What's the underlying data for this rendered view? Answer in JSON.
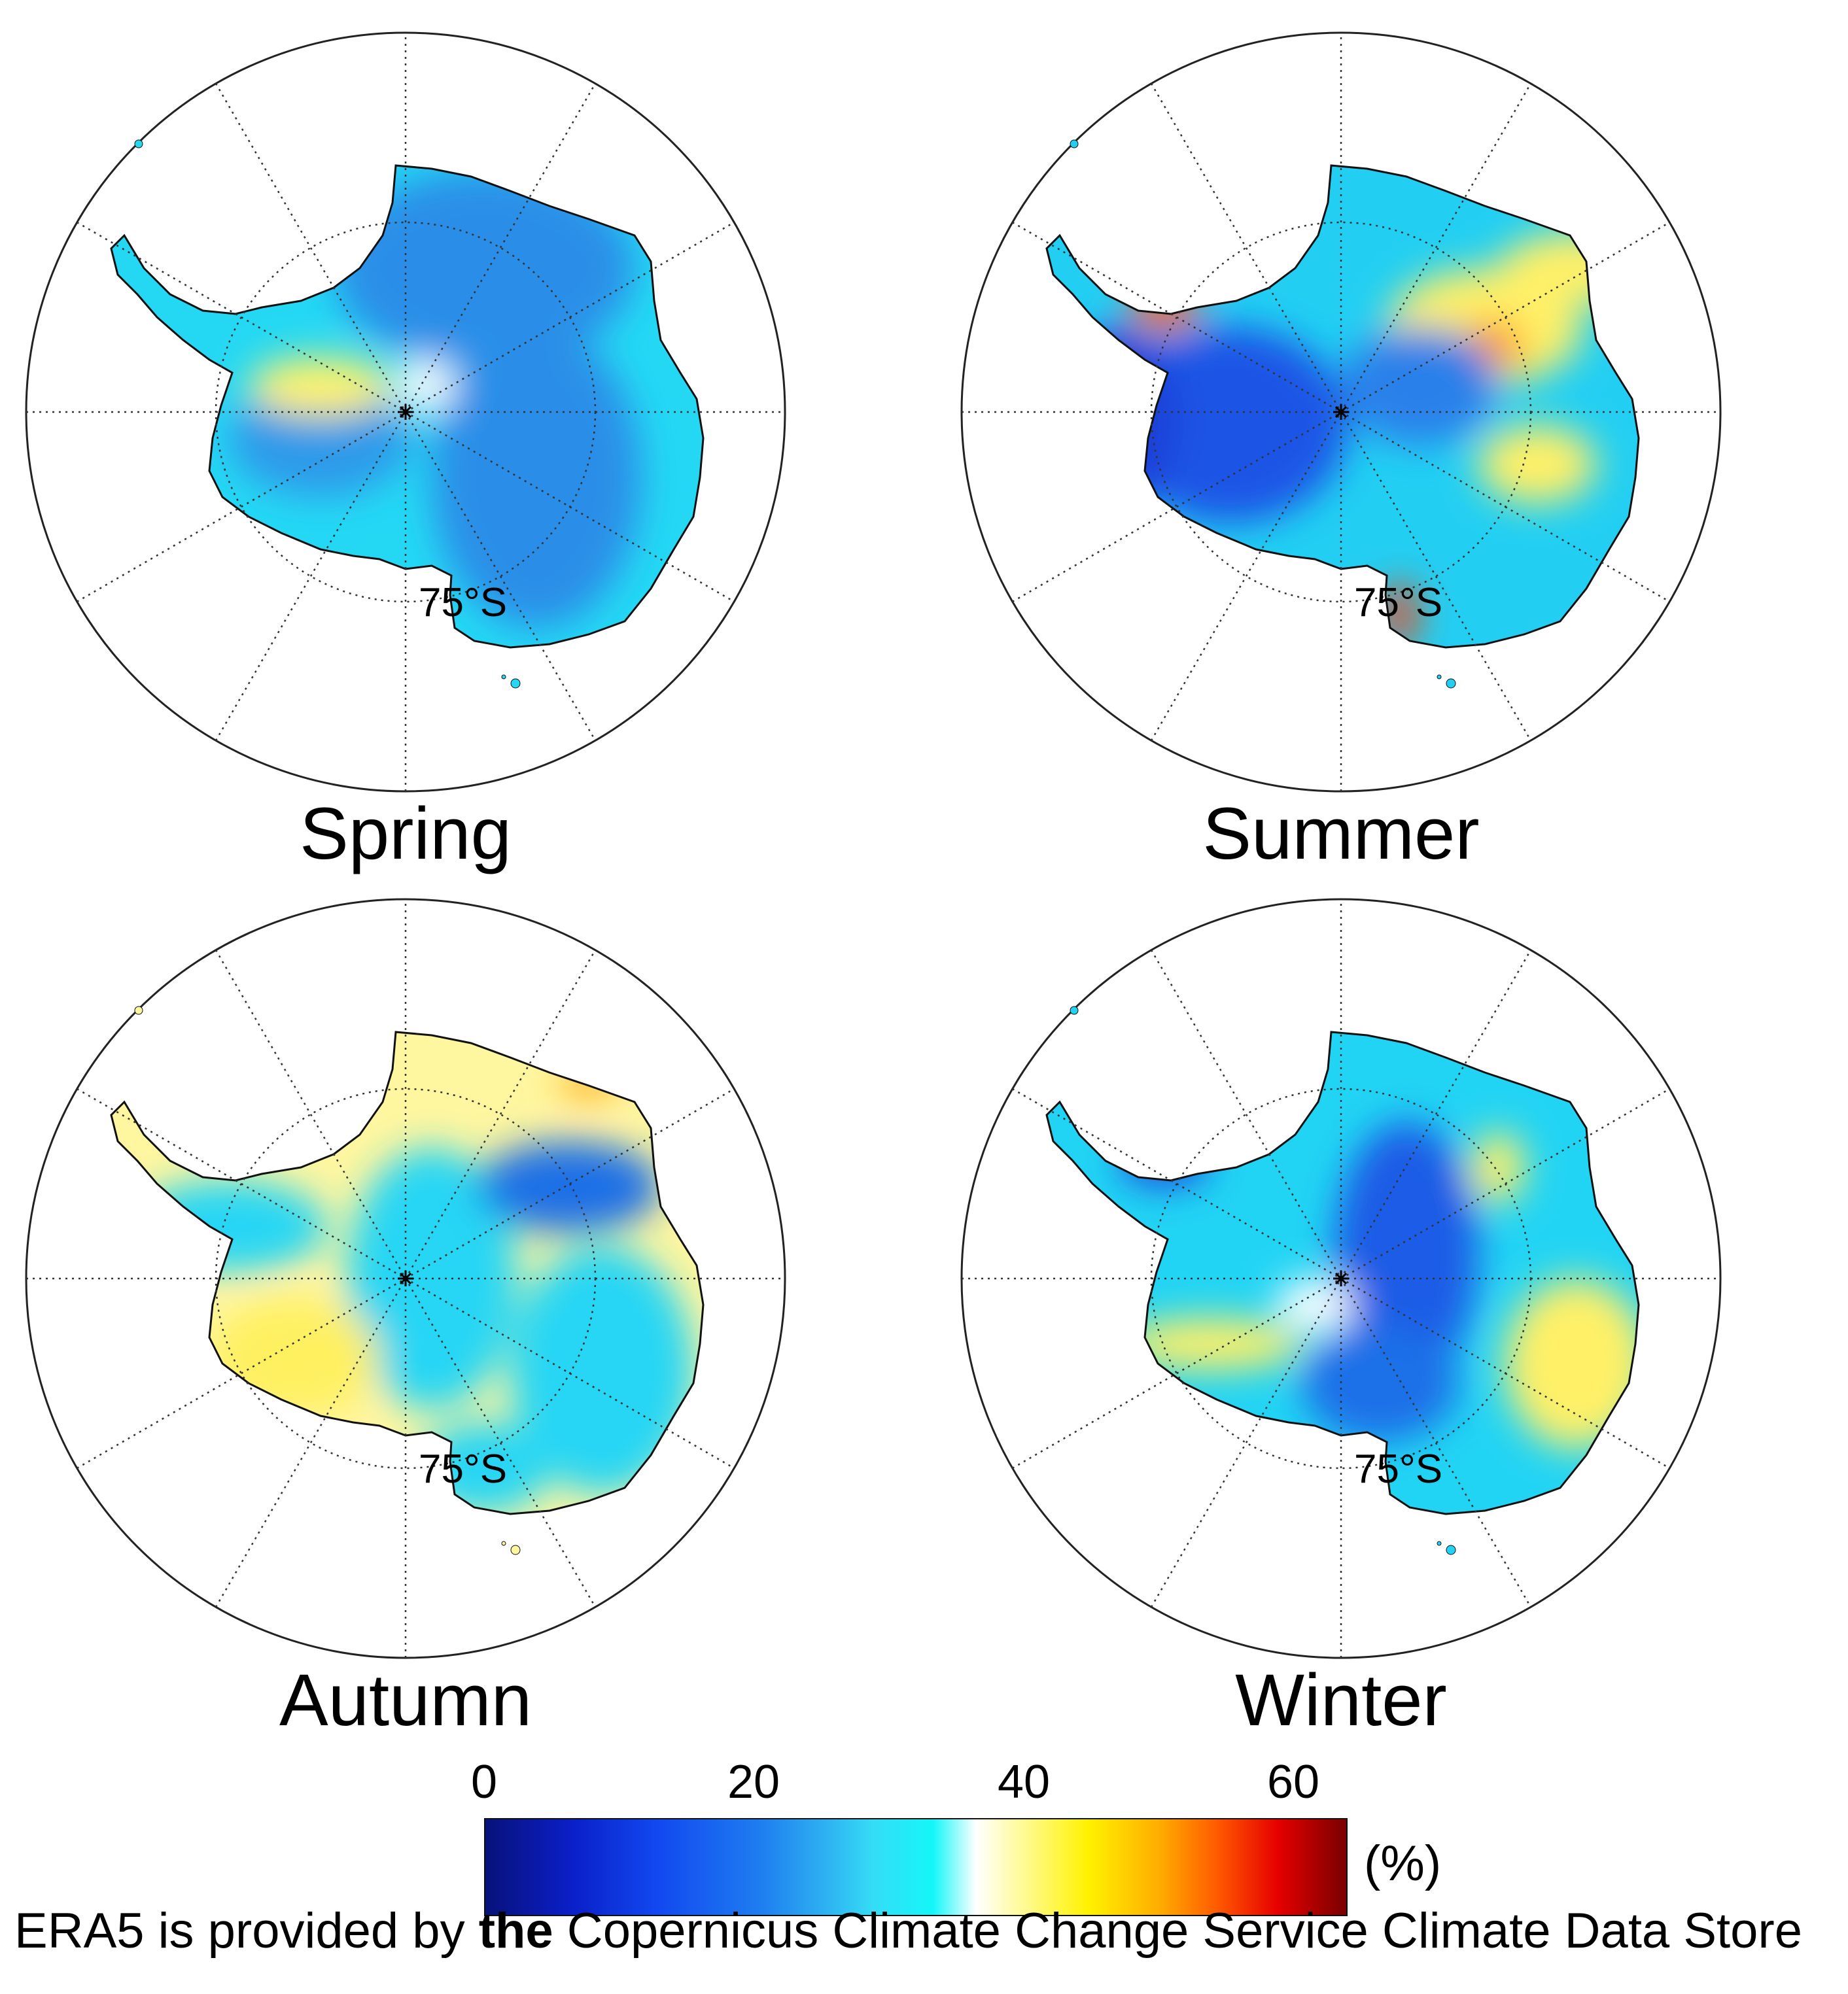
{
  "panels": [
    {
      "season": "Spring",
      "latitude_label": "75°S"
    },
    {
      "season": "Summer",
      "latitude_label": "75°S"
    },
    {
      "season": "Autumn",
      "latitude_label": "75°S"
    },
    {
      "season": "Winter",
      "latitude_label": "75°S"
    }
  ],
  "colorbar": {
    "ticks": [
      "0",
      "20",
      "40",
      "60"
    ],
    "unit": "(%)",
    "range": [
      0,
      64
    ],
    "colors": [
      "#08127a",
      "#1248f0",
      "#2fb4f2",
      "#14f6f8",
      "#ffffff",
      "#fff200",
      "#ff5a00",
      "#7a0000"
    ]
  },
  "credit": {
    "prefix": "ERA5 is provided by ",
    "emphasis": "the",
    "suffix": " Copernicus Climate Change Service Climate Data Store"
  },
  "colors": {
    "land_outline": "#111111",
    "graticule": "#333333",
    "circle": "#222222"
  }
}
